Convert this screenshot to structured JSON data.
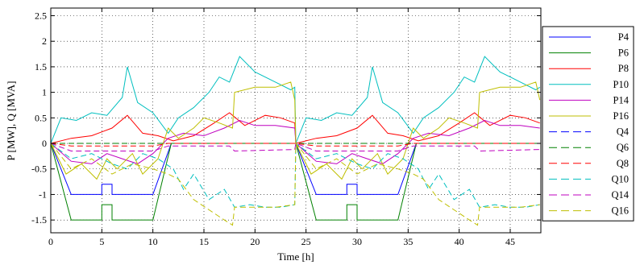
{
  "chart_data": {
    "type": "line",
    "xlabel": "Time [h]",
    "ylabel": "P [MW], Q [MVA]",
    "xlim": [
      0,
      48
    ],
    "ylim": [
      -1.75,
      2.65
    ],
    "xticks": [
      0,
      5,
      10,
      15,
      20,
      25,
      30,
      35,
      40,
      45
    ],
    "xtick_labels": [
      "0",
      "5",
      "10",
      "15",
      "20",
      "25",
      "30",
      "35",
      "40",
      "45"
    ],
    "yticks": [
      -1.5,
      -1,
      -0.5,
      0,
      0.5,
      1,
      1.5,
      2,
      2.5
    ],
    "ytick_labels": [
      "-1.5",
      "-1",
      "-0.5",
      "0",
      "0.5",
      "1",
      "1.5",
      "2",
      "2.5"
    ],
    "grid": true,
    "legend_position": "right",
    "series": [
      {
        "name": "P4",
        "color": "#0000ff",
        "dash": "solid",
        "x": [
          0,
          2,
          5,
          5,
          6,
          6,
          10,
          11.8,
          24,
          26,
          29,
          29,
          30,
          30,
          34,
          35.8,
          48
        ],
        "y": [
          0,
          -1,
          -1,
          -0.8,
          -0.8,
          -1,
          -1,
          0,
          0,
          -1,
          -1,
          -0.8,
          -0.8,
          -1,
          -1,
          0,
          0
        ]
      },
      {
        "name": "P6",
        "color": "#008000",
        "dash": "solid",
        "x": [
          0,
          2,
          5,
          5,
          6,
          6,
          10,
          11.8,
          24,
          26,
          29,
          29,
          30,
          30,
          34,
          35.8,
          48
        ],
        "y": [
          0,
          -1.5,
          -1.5,
          -1.2,
          -1.2,
          -1.5,
          -1.5,
          0,
          0,
          -1.5,
          -1.5,
          -1.2,
          -1.2,
          -1.5,
          -1.5,
          0,
          0
        ]
      },
      {
        "name": "P8",
        "color": "#ff0000",
        "dash": "solid",
        "x": [
          0,
          2,
          4,
          6,
          7.5,
          9,
          10.5,
          12,
          14,
          16,
          17.5,
          19,
          21,
          22.5,
          23.9,
          24,
          26,
          28,
          30,
          31.5,
          33,
          34.5,
          36,
          38,
          40,
          41.5,
          43,
          45,
          46.5,
          47.9
        ],
        "y": [
          0,
          0.1,
          0.15,
          0.3,
          0.55,
          0.2,
          0.15,
          0.05,
          0.15,
          0.4,
          0.6,
          0.35,
          0.55,
          0.5,
          0.4,
          0,
          0.1,
          0.15,
          0.3,
          0.55,
          0.2,
          0.15,
          0.05,
          0.15,
          0.4,
          0.6,
          0.35,
          0.55,
          0.5,
          0.4
        ]
      },
      {
        "name": "P10",
        "color": "#00bfbf",
        "dash": "solid",
        "x": [
          0,
          1,
          2.5,
          4,
          5.5,
          7,
          7.5,
          8.5,
          10,
          11.5,
          12.5,
          14,
          15.5,
          16.5,
          17.5,
          18.5,
          20,
          22,
          23.5,
          23.9,
          24,
          25,
          26.5,
          28,
          29.5,
          31,
          31.5,
          32.5,
          34,
          35.5,
          36.5,
          38,
          39.5,
          40.5,
          41.5,
          42.5,
          44,
          46,
          47.5,
          47.9
        ],
        "y": [
          0,
          0.5,
          0.45,
          0.6,
          0.55,
          0.9,
          1.5,
          0.8,
          0.6,
          0.2,
          0.5,
          0.7,
          1.0,
          1.3,
          1.2,
          1.7,
          1.4,
          1.2,
          1.05,
          1.1,
          0,
          0.5,
          0.45,
          0.6,
          0.55,
          0.9,
          1.5,
          0.8,
          0.6,
          0.2,
          0.5,
          0.7,
          1.0,
          1.3,
          1.2,
          1.7,
          1.4,
          1.2,
          1.05,
          1.1
        ]
      },
      {
        "name": "P14",
        "color": "#bf00bf",
        "dash": "solid",
        "x": [
          0,
          2,
          4,
          5.5,
          7,
          8.5,
          10,
          11.5,
          13,
          15,
          17,
          18.5,
          20,
          22,
          23.9,
          24,
          26,
          28,
          29.5,
          31,
          32.5,
          34,
          35.5,
          37,
          39,
          41,
          42.5,
          44,
          46,
          47.9
        ],
        "y": [
          0,
          -0.35,
          -0.4,
          -0.2,
          -0.3,
          -0.4,
          -0.2,
          0.1,
          0.2,
          0.15,
          0.3,
          0.45,
          0.35,
          0.35,
          0.3,
          0,
          -0.35,
          -0.4,
          -0.2,
          -0.3,
          -0.4,
          -0.2,
          0.1,
          0.2,
          0.15,
          0.3,
          0.45,
          0.35,
          0.35,
          0.3
        ]
      },
      {
        "name": "P16",
        "color": "#bfbf00",
        "dash": "solid",
        "x": [
          0,
          1.5,
          3,
          4.5,
          5.5,
          6.5,
          8,
          9,
          10.5,
          11.5,
          12.5,
          14,
          15,
          16.5,
          17.8,
          18,
          20,
          22,
          23.5,
          23.9,
          24,
          25.5,
          27,
          28.5,
          29.5,
          30.5,
          32,
          33,
          34.5,
          35.5,
          36.5,
          38,
          39,
          40.5,
          41.8,
          42,
          44,
          46,
          47.5,
          47.9
        ],
        "y": [
          0,
          -0.6,
          -0.4,
          -0.7,
          -0.3,
          -0.5,
          -0.2,
          -0.6,
          -0.3,
          0.3,
          0.1,
          0.3,
          0.5,
          0.4,
          0.3,
          1.0,
          1.1,
          1.1,
          1.2,
          0.85,
          0,
          -0.6,
          -0.4,
          -0.7,
          -0.3,
          -0.5,
          -0.2,
          -0.6,
          -0.3,
          0.3,
          0.1,
          0.3,
          0.5,
          0.4,
          0.3,
          1.0,
          1.1,
          1.1,
          1.2,
          0.85
        ]
      },
      {
        "name": "Q4",
        "color": "#0000ff",
        "dash": "dashed",
        "x": [
          0,
          48
        ],
        "y": [
          0,
          0
        ]
      },
      {
        "name": "Q6",
        "color": "#008000",
        "dash": "dashed",
        "x": [
          0,
          48
        ],
        "y": [
          0,
          0
        ]
      },
      {
        "name": "Q8",
        "color": "#ff0000",
        "dash": "dashed",
        "x": [
          0,
          2,
          10,
          11.5,
          24,
          26,
          34,
          35.5,
          48
        ],
        "y": [
          0,
          -0.05,
          -0.05,
          0,
          0,
          -0.05,
          -0.05,
          0,
          0
        ]
      },
      {
        "name": "Q10",
        "color": "#00bfbf",
        "dash": "dashed",
        "x": [
          0,
          2,
          4,
          6,
          7.5,
          9,
          10.5,
          12,
          13,
          14,
          15.5,
          17,
          18,
          19.5,
          21,
          22.5,
          23.9,
          24,
          26,
          28,
          30,
          31.5,
          33,
          34.5,
          36,
          37,
          38,
          39.5,
          41,
          42,
          43.5,
          45,
          46.5,
          47.9
        ],
        "y": [
          0,
          -0.3,
          -0.2,
          -0.4,
          -0.5,
          -0.2,
          -0.3,
          -0.5,
          -0.9,
          -0.6,
          -1.1,
          -0.9,
          -1.25,
          -1.2,
          -1.25,
          -1.25,
          -1.2,
          0,
          -0.3,
          -0.2,
          -0.4,
          -0.5,
          -0.2,
          -0.3,
          -0.5,
          -0.9,
          -0.6,
          -1.1,
          -0.9,
          -1.25,
          -1.2,
          -1.25,
          -1.25,
          -1.2
        ]
      },
      {
        "name": "Q14",
        "color": "#bf00bf",
        "dash": "dashed",
        "x": [
          0,
          2,
          10,
          11.5,
          17.5,
          18,
          23.9,
          24,
          26,
          34,
          35.5,
          41.5,
          42,
          47.9
        ],
        "y": [
          0,
          -0.15,
          -0.15,
          -0.05,
          -0.05,
          -0.15,
          -0.12,
          0,
          -0.15,
          -0.15,
          -0.05,
          -0.05,
          -0.15,
          -0.12
        ]
      },
      {
        "name": "Q16",
        "color": "#bfbf00",
        "dash": "dashed",
        "x": [
          0,
          2,
          4,
          6,
          8,
          10,
          11.5,
          12.5,
          14,
          15.5,
          17,
          17.8,
          18,
          20,
          22,
          23.9,
          24,
          26,
          28,
          30,
          32,
          34,
          35.5,
          36.5,
          38,
          39.5,
          41,
          41.8,
          42,
          44,
          46,
          47.9
        ],
        "y": [
          0,
          -0.5,
          -0.3,
          -0.6,
          -0.4,
          -0.5,
          -0.6,
          -0.7,
          -1.1,
          -1.3,
          -1.5,
          -1.6,
          -1.25,
          -1.25,
          -1.25,
          -1.2,
          0,
          -0.5,
          -0.3,
          -0.6,
          -0.4,
          -0.5,
          -0.6,
          -0.7,
          -1.1,
          -1.3,
          -1.5,
          -1.6,
          -1.25,
          -1.25,
          -1.25,
          -1.2
        ]
      }
    ]
  }
}
